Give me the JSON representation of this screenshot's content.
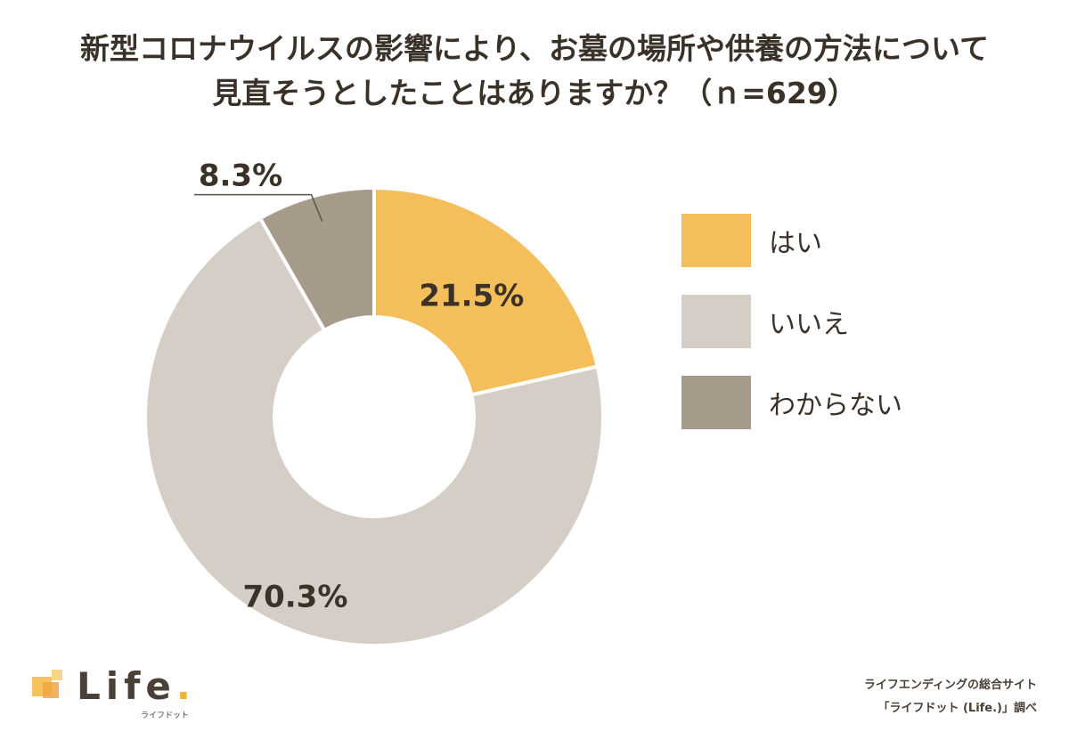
{
  "title_line1": "新型コロナウイルスの影響により、お墓の場所や供養の方法について",
  "title_line2": "見直そうとしたことはありますか？（ｎ=629）",
  "chart_data": {
    "type": "pie",
    "donut": true,
    "categories": [
      "はい",
      "いいえ",
      "わからない"
    ],
    "values": [
      21.5,
      70.3,
      8.3
    ],
    "value_labels": [
      "21.5%",
      "70.3%",
      "8.3%"
    ],
    "colors": [
      "#f4bf5a",
      "#d5cec7",
      "#a69a8b"
    ],
    "legend_position": "right"
  },
  "legend": [
    {
      "label": "はい",
      "color": "#f4bf5a"
    },
    {
      "label": "いいえ",
      "color": "#d5cec7"
    },
    {
      "label": "わからない",
      "color": "#a69a8b"
    }
  ],
  "logo": {
    "text": "Life",
    "dot": ".",
    "sub": "ライフドット"
  },
  "source": {
    "line1": "ライフエンディングの総合サイト",
    "line2": "「ライフドット (Life.)」調べ"
  }
}
